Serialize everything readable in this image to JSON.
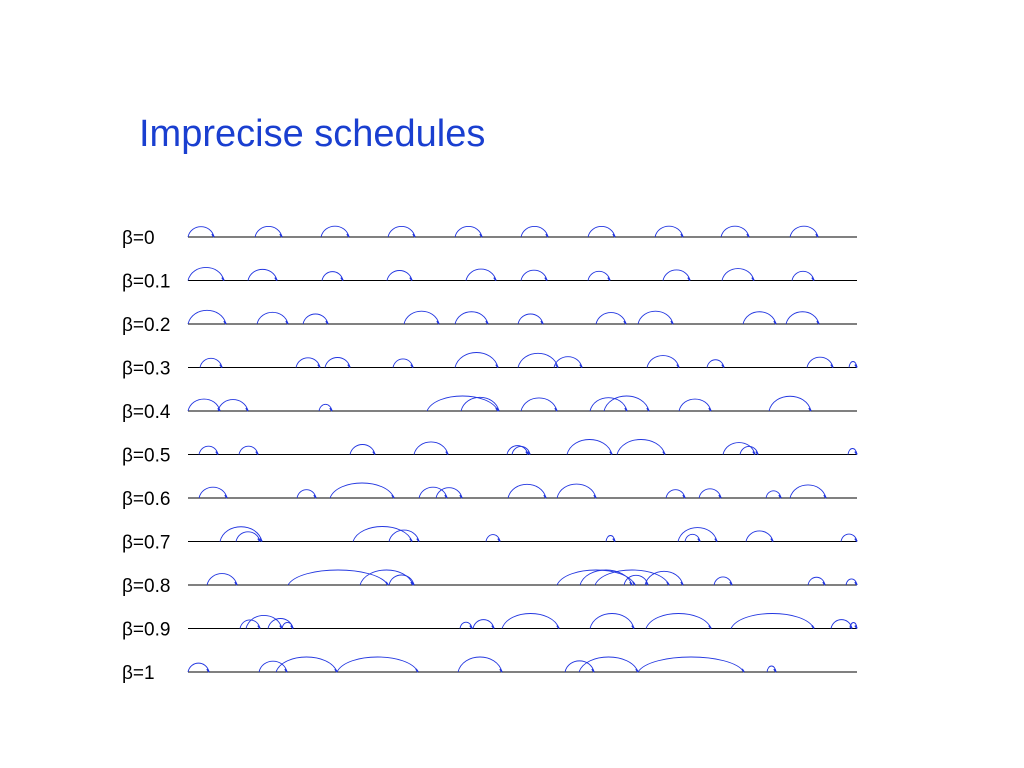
{
  "title": "Imprecise schedules",
  "rows": [
    {
      "label": "β=0",
      "arcs": [
        [
          188,
          214
        ],
        [
          255,
          282
        ],
        [
          321,
          349
        ],
        [
          388,
          415
        ],
        [
          455,
          482
        ],
        [
          521,
          548
        ],
        [
          588,
          615
        ],
        [
          655,
          683
        ],
        [
          721,
          749
        ],
        [
          790,
          818
        ]
      ]
    },
    {
      "label": "β=0.1",
      "arcs": [
        [
          188,
          224
        ],
        [
          248,
          277
        ],
        [
          322,
          343
        ],
        [
          387,
          412
        ],
        [
          466,
          496
        ],
        [
          521,
          547
        ],
        [
          588,
          610
        ],
        [
          663,
          690
        ],
        [
          722,
          754
        ],
        [
          792,
          814
        ]
      ]
    },
    {
      "label": "β=0.2",
      "arcs": [
        [
          188,
          226
        ],
        [
          257,
          288
        ],
        [
          303,
          328
        ],
        [
          404,
          439
        ],
        [
          455,
          488
        ],
        [
          518,
          543
        ],
        [
          596,
          626
        ],
        [
          638,
          673
        ],
        [
          743,
          776
        ],
        [
          786,
          819
        ]
      ]
    },
    {
      "label": "β=0.3",
      "arcs": [
        [
          200,
          222
        ],
        [
          296,
          320
        ],
        [
          325,
          350
        ],
        [
          393,
          413
        ],
        [
          455,
          498
        ],
        [
          518,
          558
        ],
        [
          554,
          582
        ],
        [
          647,
          679
        ],
        [
          707,
          724
        ],
        [
          807,
          833
        ],
        [
          849,
          857
        ]
      ]
    },
    {
      "label": "β=0.4",
      "arcs": [
        [
          188,
          220
        ],
        [
          218,
          248
        ],
        [
          319,
          332
        ],
        [
          427,
          498
        ],
        [
          461,
          499
        ],
        [
          521,
          557
        ],
        [
          590,
          627
        ],
        [
          604,
          649
        ],
        [
          679,
          711
        ],
        [
          769,
          811
        ]
      ]
    },
    {
      "label": "β=0.5",
      "arcs": [
        [
          199,
          218
        ],
        [
          239,
          258
        ],
        [
          350,
          375
        ],
        [
          414,
          448
        ],
        [
          507,
          528
        ],
        [
          512,
          530
        ],
        [
          567,
          612
        ],
        [
          617,
          665
        ],
        [
          723,
          755
        ],
        [
          740,
          758
        ],
        [
          848,
          857
        ]
      ]
    },
    {
      "label": "β=0.6",
      "arcs": [
        [
          199,
          227
        ],
        [
          297,
          316
        ],
        [
          330,
          394
        ],
        [
          419,
          447
        ],
        [
          436,
          462
        ],
        [
          508,
          546
        ],
        [
          557,
          596
        ],
        [
          666,
          685
        ],
        [
          699,
          721
        ],
        [
          766,
          781
        ],
        [
          790,
          826
        ]
      ]
    },
    {
      "label": "β=0.7",
      "arcs": [
        [
          220,
          262
        ],
        [
          236,
          260
        ],
        [
          353,
          412
        ],
        [
          389,
          419
        ],
        [
          486,
          500
        ],
        [
          606,
          615
        ],
        [
          678,
          717
        ],
        [
          685,
          700
        ],
        [
          746,
          773
        ],
        [
          841,
          857
        ]
      ]
    },
    {
      "label": "β=0.8",
      "arcs": [
        [
          207,
          237
        ],
        [
          288,
          388
        ],
        [
          360,
          413
        ],
        [
          389,
          414
        ],
        [
          557,
          635
        ],
        [
          580,
          632
        ],
        [
          595,
          669
        ],
        [
          624,
          648
        ],
        [
          645,
          683
        ],
        [
          714,
          732
        ],
        [
          808,
          825
        ],
        [
          846,
          857
        ]
      ]
    },
    {
      "label": "β=0.9",
      "arcs": [
        [
          240,
          260
        ],
        [
          246,
          282
        ],
        [
          268,
          293
        ],
        [
          282,
          293
        ],
        [
          460,
          472
        ],
        [
          473,
          494
        ],
        [
          502,
          559
        ],
        [
          590,
          634
        ],
        [
          646,
          711
        ],
        [
          731,
          814
        ],
        [
          831,
          852
        ],
        [
          850,
          857
        ]
      ]
    },
    {
      "label": "β=1",
      "arcs": [
        [
          188,
          209
        ],
        [
          259,
          287
        ],
        [
          276,
          337
        ],
        [
          337,
          418
        ],
        [
          458,
          502
        ],
        [
          565,
          594
        ],
        [
          579,
          638
        ],
        [
          638,
          744
        ],
        [
          767,
          776
        ]
      ]
    }
  ],
  "colors": {
    "title": "#1a3fd0",
    "arc": "#2236e0",
    "baseline": "#000000"
  }
}
